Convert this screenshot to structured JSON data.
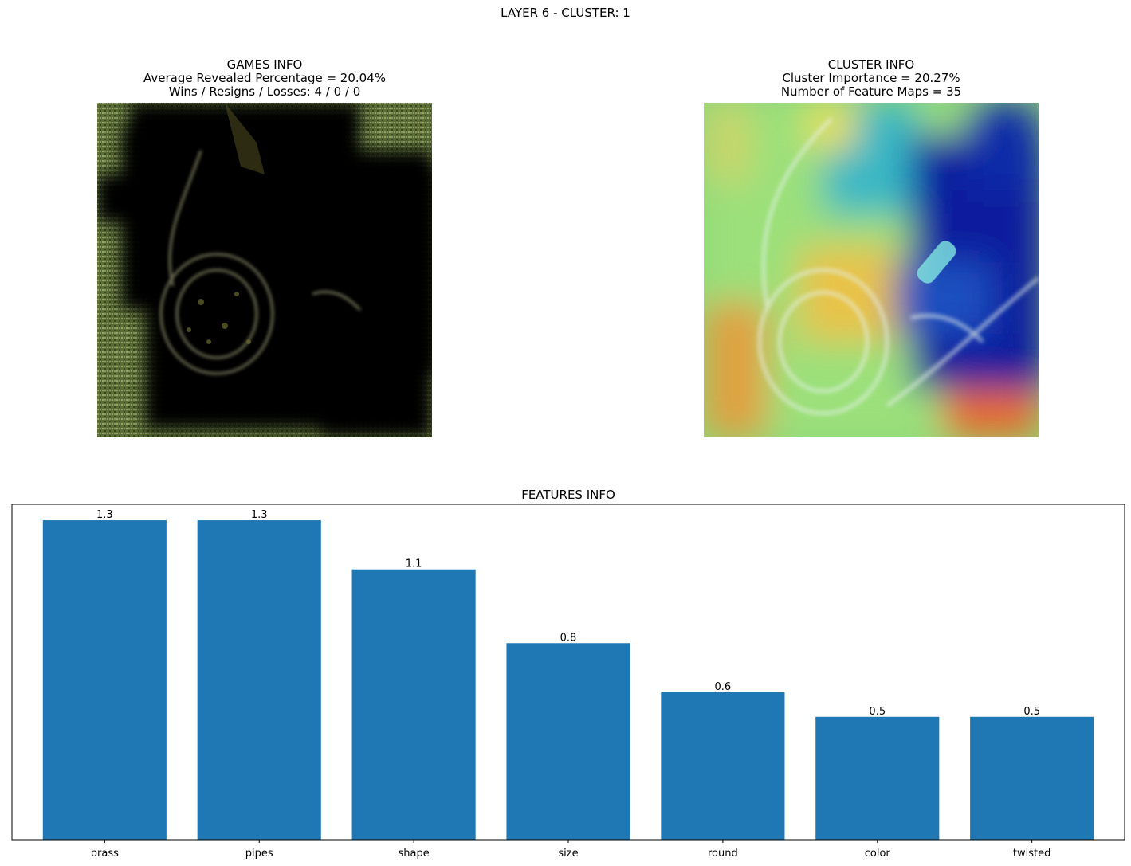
{
  "suptitle": "LAYER 6 - CLUSTER: 1",
  "games_panel": {
    "title": "GAMES INFO",
    "line1": "Average Revealed Percentage = 20.04%",
    "line2": "Wins / Resigns / Losses: 4 / 0 / 0"
  },
  "cluster_panel": {
    "title": "CLUSTER INFO",
    "line1": "Cluster Importance = 20.27%",
    "line2": "Number of Feature Maps = 35"
  },
  "chart_data": {
    "type": "bar",
    "title": "FEATURES INFO",
    "categories": [
      "brass",
      "pipes",
      "shape",
      "size",
      "round",
      "color",
      "twisted"
    ],
    "values": [
      1.3,
      1.3,
      1.1,
      0.8,
      0.6,
      0.5,
      0.5
    ],
    "value_labels": [
      "1.3",
      "1.3",
      "1.1",
      "0.8",
      "0.6",
      "0.5",
      "0.5"
    ],
    "ylim": [
      0,
      1.365
    ],
    "bar_color": "#1f77b4",
    "grid": false,
    "show_yticks": false
  }
}
